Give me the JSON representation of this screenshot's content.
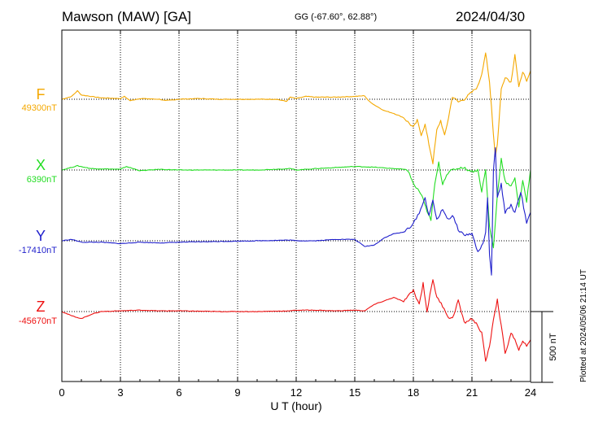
{
  "header": {
    "station": "Mawson (MAW)  [GA]",
    "coords": "GG (-67.60°,  62.88°)",
    "date": "2024/04/30"
  },
  "footer": {
    "plotted": "Plotted at 2024/05/06 21:14 UT"
  },
  "chart_data": {
    "type": "line",
    "title": "Mawson (MAW)  [GA]",
    "xlabel": "U T (hour)",
    "xlim": [
      0,
      24
    ],
    "xticks": [
      0,
      3,
      6,
      9,
      12,
      15,
      18,
      21,
      24
    ],
    "scale_bar": {
      "label": "500 nT",
      "value_nT": 500
    },
    "series": [
      {
        "name": "F",
        "baseline": "49300nT",
        "baseline_nT": 49300,
        "color": "#f4a800",
        "x": [
          0,
          0.5,
          0.8,
          1.0,
          1.5,
          2,
          3,
          3.2,
          3.5,
          4,
          5,
          5.3,
          6,
          7,
          8,
          9,
          10,
          11,
          11.5,
          11.7,
          12,
          12.5,
          13,
          14,
          15,
          15.5,
          15.7,
          16,
          16.5,
          17,
          17.5,
          18,
          18.2,
          18.4,
          18.6,
          18.8,
          19,
          19.2,
          19.4,
          19.6,
          19.8,
          20,
          20.3,
          20.6,
          21,
          21.3,
          21.5,
          21.7,
          21.8,
          21.9,
          22.0,
          22.1,
          22.2,
          22.3,
          22.5,
          22.7,
          23,
          23.2,
          23.4,
          23.6,
          23.8,
          24
        ],
        "values": [
          0,
          20,
          60,
          30,
          20,
          10,
          5,
          20,
          -10,
          5,
          0,
          -10,
          0,
          5,
          0,
          0,
          0,
          0,
          -15,
          15,
          5,
          20,
          15,
          15,
          20,
          25,
          -10,
          -40,
          -80,
          -100,
          -130,
          -200,
          -150,
          -250,
          -180,
          -320,
          -450,
          -220,
          -150,
          -260,
          -130,
          20,
          -20,
          0,
          50,
          90,
          180,
          330,
          220,
          120,
          -50,
          -250,
          -400,
          -320,
          70,
          160,
          120,
          320,
          80,
          200,
          120,
          200
        ]
      },
      {
        "name": "X",
        "baseline": "6390nT",
        "baseline_nT": 6390,
        "color": "#22dd22",
        "x": [
          0,
          0.8,
          1.5,
          3,
          3.3,
          4,
          5,
          6,
          8,
          10,
          11.7,
          12,
          13,
          15,
          16,
          17,
          17.5,
          17.8,
          18,
          18.3,
          18.5,
          18.7,
          18.9,
          19.1,
          19.3,
          19.5,
          19.7,
          20,
          20.5,
          21,
          21.3,
          21.5,
          21.7,
          21.9,
          22.1,
          22.3,
          22.5,
          22.7,
          23,
          23.2,
          23.4,
          23.6,
          23.8,
          24
        ],
        "values": [
          0,
          30,
          10,
          5,
          25,
          -5,
          5,
          0,
          0,
          0,
          10,
          0,
          10,
          25,
          20,
          10,
          5,
          -20,
          -100,
          -150,
          -200,
          -300,
          -350,
          -100,
          50,
          -100,
          -30,
          0,
          20,
          -10,
          0,
          -150,
          0,
          -400,
          -550,
          -180,
          80,
          -80,
          -120,
          -50,
          -260,
          -80,
          -220,
          0
        ]
      },
      {
        "name": "Y",
        "baseline": "-17410nT",
        "baseline_nT": -17410,
        "color": "#1f1fcc",
        "x": [
          0,
          0.5,
          1,
          2,
          3,
          4,
          5,
          6,
          8,
          10,
          11.7,
          12,
          13,
          14,
          15,
          15.5,
          16,
          16.5,
          17,
          17.5,
          18,
          18.3,
          18.6,
          18.8,
          19,
          19.2,
          19.5,
          19.8,
          20,
          20.3,
          20.6,
          21,
          21.3,
          21.5,
          21.7,
          21.8,
          21.9,
          22.0,
          22.1,
          22.2,
          22.3,
          22.5,
          22.7,
          23,
          23.2,
          23.5,
          23.8,
          24
        ],
        "values": [
          0,
          10,
          -10,
          -10,
          -20,
          -10,
          -15,
          -10,
          -5,
          0,
          5,
          0,
          0,
          10,
          10,
          -40,
          -30,
          20,
          50,
          60,
          120,
          200,
          300,
          180,
          280,
          150,
          220,
          150,
          180,
          80,
          40,
          50,
          -80,
          -40,
          50,
          300,
          -100,
          -250,
          500,
          650,
          300,
          400,
          200,
          250,
          200,
          350,
          120,
          200
        ]
      },
      {
        "name": "Z",
        "baseline": "-45670nT",
        "baseline_nT": -45670,
        "color": "#ee1111",
        "x": [
          0,
          0.5,
          1,
          1.5,
          2,
          3,
          4,
          5,
          6,
          8,
          10,
          11.7,
          12,
          13,
          14,
          15,
          15.5,
          16,
          17,
          17.5,
          18,
          18.3,
          18.5,
          18.7,
          19,
          19.2,
          19.5,
          19.8,
          20,
          20.3,
          20.6,
          21,
          21.3,
          21.5,
          21.7,
          21.9,
          22.1,
          22.3,
          22.5,
          22.7,
          23,
          23.2,
          23.4,
          23.6,
          23.8,
          24
        ],
        "values": [
          0,
          -30,
          -50,
          -20,
          0,
          5,
          10,
          5,
          5,
          0,
          0,
          5,
          10,
          10,
          5,
          10,
          5,
          50,
          100,
          70,
          150,
          50,
          200,
          0,
          230,
          100,
          40,
          -40,
          -50,
          80,
          -80,
          -50,
          -100,
          -150,
          -350,
          -250,
          -50,
          80,
          -100,
          -300,
          -150,
          -200,
          -280,
          -200,
          -250,
          -200
        ]
      }
    ]
  }
}
